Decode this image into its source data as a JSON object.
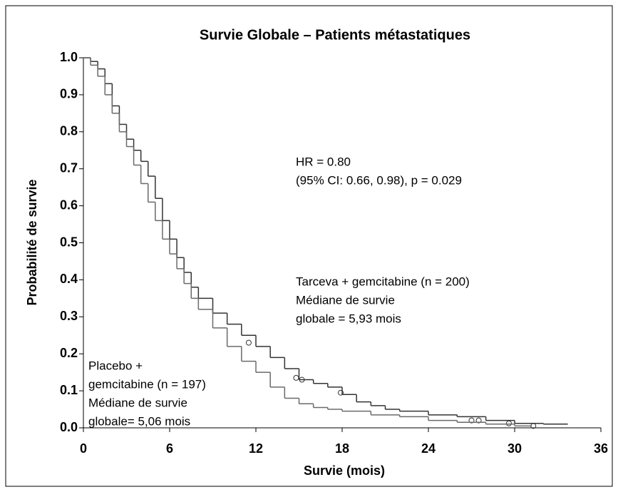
{
  "chart_data": {
    "type": "step",
    "title": "Survie Globale – Patients métastatiques",
    "x_label": "Survie (mois)",
    "y_label": "Probabilité de survie",
    "xlim": [
      0,
      36
    ],
    "xticks": [
      0,
      6,
      12,
      18,
      24,
      30,
      36
    ],
    "ylim": [
      0,
      1
    ],
    "yticks": [
      {
        "value": 0,
        "label": "0.0"
      },
      0.1,
      0.2,
      0.3,
      0.4,
      0.5,
      0.6,
      0.7,
      0.8,
      0.9,
      {
        "value": 1,
        "label": "1.0"
      }
    ],
    "annotations": [
      [
        "HR = 0.80",
        "(95% CI: 0.66, 0.98), p = 0.029"
      ],
      [
        "Tarceva + gemcitabine (n = 200)",
        "Médiane de survie",
        "globale = 5,93 mois"
      ],
      [
        "Placebo +",
        "gemcitabine (n = 197)",
        "Médiane de survie",
        "globale= 5,06 mois"
      ]
    ],
    "series": [
      {
        "color": "#333333",
        "x": [
          0,
          0.5,
          1,
          1.5,
          2,
          2.5,
          3,
          3.5,
          4,
          4.5,
          5,
          5.5,
          6,
          6.5,
          7,
          7.5,
          8,
          9,
          10,
          11,
          12,
          13,
          14,
          15,
          16,
          17,
          18,
          19,
          20,
          21,
          22,
          24,
          26,
          28,
          30,
          32,
          33.7
        ],
        "values": [
          1.0,
          0.99,
          0.97,
          0.93,
          0.87,
          0.82,
          0.78,
          0.75,
          0.72,
          0.68,
          0.62,
          0.56,
          0.51,
          0.46,
          0.42,
          0.38,
          0.35,
          0.31,
          0.28,
          0.25,
          0.22,
          0.19,
          0.16,
          0.13,
          0.12,
          0.11,
          0.09,
          0.07,
          0.06,
          0.05,
          0.045,
          0.035,
          0.03,
          0.02,
          0.012,
          0.01,
          0.01
        ],
        "censored_x": [
          11.5,
          14.8,
          15.2,
          17.9,
          27,
          27.5,
          29.6,
          31.3
        ],
        "censored_values": [
          0.23,
          0.135,
          0.13,
          0.095,
          0.02,
          0.02,
          0.012,
          0.005
        ]
      },
      {
        "color": "#6a6a6a",
        "x": [
          0,
          0.5,
          1,
          1.5,
          2,
          2.5,
          3,
          3.5,
          4,
          4.5,
          5,
          5.5,
          6,
          6.5,
          7,
          7.5,
          8,
          9,
          10,
          11,
          12,
          13,
          14,
          15,
          16,
          17,
          18,
          20,
          22,
          24,
          26,
          28,
          30,
          31.2
        ],
        "values": [
          1.0,
          0.98,
          0.95,
          0.9,
          0.85,
          0.8,
          0.76,
          0.71,
          0.66,
          0.61,
          0.56,
          0.51,
          0.47,
          0.43,
          0.39,
          0.35,
          0.32,
          0.27,
          0.22,
          0.18,
          0.15,
          0.11,
          0.08,
          0.065,
          0.055,
          0.05,
          0.045,
          0.035,
          0.03,
          0.02,
          0.015,
          0.01,
          0.005,
          0.005
        ]
      }
    ]
  }
}
